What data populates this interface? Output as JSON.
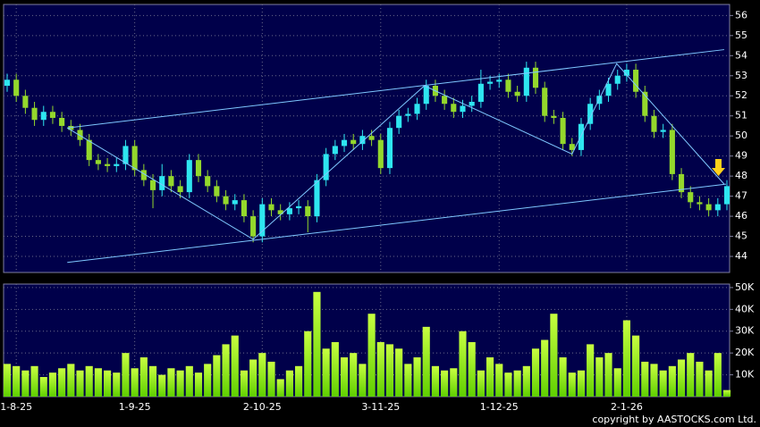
{
  "chart_data": [
    {
      "type": "candlestick",
      "categories": [
        null,
        "1-8-25",
        null,
        null,
        null,
        null,
        null,
        null,
        null,
        null,
        null,
        null,
        null,
        null,
        "1-9-25",
        null,
        null,
        null,
        null,
        null,
        null,
        null,
        null,
        null,
        null,
        null,
        null,
        null,
        "2-10-25",
        null,
        null,
        null,
        null,
        null,
        null,
        null,
        null,
        null,
        null,
        null,
        null,
        "3-11-25",
        null,
        null,
        null,
        null,
        null,
        null,
        null,
        null,
        null,
        null,
        null,
        null,
        "1-12-25",
        null,
        null,
        null,
        null,
        null,
        null,
        null,
        null,
        null,
        null,
        null,
        null,
        null,
        "2-1-26",
        null,
        null,
        null,
        null,
        null,
        null,
        null,
        null,
        null,
        null,
        null
      ],
      "open": [
        52.5,
        52.8,
        52.0,
        51.4,
        50.8,
        51.2,
        50.9,
        50.5,
        50.3,
        49.8,
        48.8,
        48.6,
        48.5,
        48.6,
        49.5,
        48.3,
        47.8,
        47.3,
        48.0,
        47.5,
        47.2,
        48.8,
        48.0,
        47.5,
        47.0,
        46.6,
        46.8,
        46.0,
        45.0,
        46.6,
        46.3,
        46.1,
        46.4,
        46.5,
        46.0,
        47.8,
        49.1,
        49.5,
        49.8,
        49.6,
        50.0,
        49.8,
        48.4,
        50.4,
        51.0,
        51.1,
        51.6,
        52.5,
        52.0,
        51.6,
        51.2,
        51.5,
        51.7,
        52.6,
        52.7,
        52.8,
        52.2,
        52.0,
        53.4,
        52.4,
        51.0,
        50.9,
        49.6,
        49.3,
        50.6,
        51.6,
        52.0,
        52.6,
        53.0,
        53.3,
        52.2,
        51.0,
        50.2,
        50.3,
        48.1,
        47.2,
        46.7,
        46.6,
        46.3,
        46.6
      ],
      "high": [
        53.1,
        53.1,
        52.3,
        51.7,
        51.5,
        51.5,
        51.2,
        50.8,
        50.6,
        50.1,
        49.1,
        48.9,
        48.9,
        49.8,
        49.8,
        48.6,
        48.1,
        48.6,
        48.3,
        47.8,
        49.1,
        49.1,
        48.3,
        47.8,
        47.3,
        47.1,
        47.1,
        46.3,
        46.9,
        46.9,
        46.6,
        46.7,
        46.8,
        46.8,
        48.1,
        49.4,
        49.8,
        50.1,
        50.1,
        50.3,
        50.3,
        50.1,
        50.7,
        51.3,
        51.4,
        51.9,
        52.8,
        52.8,
        52.3,
        51.9,
        51.8,
        52.0,
        53.3,
        53.0,
        53.1,
        53.1,
        52.5,
        53.7,
        53.7,
        52.7,
        51.3,
        51.2,
        49.9,
        50.9,
        51.9,
        52.3,
        52.9,
        53.3,
        53.6,
        53.6,
        52.5,
        51.3,
        50.6,
        50.6,
        48.4,
        47.5,
        47.0,
        46.9,
        46.9,
        47.8
      ],
      "low": [
        52.2,
        51.7,
        51.1,
        50.5,
        50.5,
        50.6,
        50.2,
        50.0,
        49.5,
        48.5,
        48.3,
        48.2,
        48.2,
        48.3,
        48.0,
        47.5,
        46.4,
        47.0,
        47.2,
        46.9,
        46.9,
        47.7,
        47.2,
        46.7,
        46.3,
        46.3,
        45.7,
        44.7,
        44.7,
        46.0,
        45.8,
        45.8,
        46.1,
        45.2,
        45.7,
        47.5,
        48.8,
        49.2,
        49.3,
        49.3,
        49.5,
        48.1,
        48.1,
        50.1,
        50.7,
        50.8,
        51.3,
        51.7,
        51.3,
        50.9,
        50.9,
        51.2,
        51.4,
        52.3,
        52.4,
        51.9,
        51.7,
        51.7,
        52.1,
        50.7,
        50.6,
        49.3,
        49.0,
        49.0,
        50.3,
        51.3,
        51.7,
        52.3,
        52.7,
        51.9,
        50.7,
        49.9,
        49.9,
        47.8,
        46.9,
        46.4,
        46.3,
        46.0,
        46.0,
        46.3
      ],
      "close": [
        52.8,
        52.0,
        51.4,
        50.8,
        51.2,
        50.9,
        50.5,
        50.3,
        49.8,
        48.8,
        48.6,
        48.5,
        48.6,
        49.5,
        48.3,
        47.8,
        47.3,
        48.0,
        47.5,
        47.2,
        48.8,
        48.0,
        47.5,
        47.0,
        46.6,
        46.8,
        46.0,
        45.0,
        46.6,
        46.3,
        46.1,
        46.4,
        46.5,
        46.0,
        47.8,
        49.1,
        49.5,
        49.8,
        49.6,
        50.0,
        49.8,
        48.4,
        50.4,
        51.0,
        51.1,
        51.6,
        52.5,
        52.0,
        51.6,
        51.2,
        51.5,
        51.7,
        52.6,
        52.7,
        52.8,
        52.2,
        52.0,
        53.4,
        52.4,
        51.0,
        50.9,
        49.6,
        49.3,
        50.6,
        51.6,
        52.0,
        52.6,
        53.0,
        53.3,
        52.2,
        51.0,
        50.2,
        50.3,
        48.1,
        47.2,
        46.7,
        46.6,
        46.3,
        46.6,
        47.5
      ],
      "up_color": "#2ee6f0",
      "down_color": "#94d82c",
      "trendline_color": "#7fc8ff",
      "trendlines": [
        {
          "x": [
            6.6,
            78.7
          ],
          "y": [
            50.4,
            54.3
          ]
        },
        {
          "x": [
            6.6,
            78.9
          ],
          "y": [
            43.7,
            47.6
          ]
        },
        {
          "x": [
            6.6,
            27,
            45.8,
            62,
            66.9,
            78.7
          ],
          "y": [
            50.4,
            44.85,
            52.5,
            49.1,
            53.6,
            47.6
          ]
        }
      ],
      "ylim": [
        43.2,
        56.55
      ],
      "yticks": [
        44,
        45,
        46,
        47,
        48,
        49,
        50,
        51,
        52,
        53,
        54,
        55,
        56
      ],
      "grid": true
    },
    {
      "type": "bar",
      "values": [
        15000,
        14000,
        12000,
        14000,
        9000,
        11000,
        13000,
        15000,
        12000,
        14000,
        13000,
        12000,
        11000,
        20000,
        13000,
        18000,
        14000,
        10000,
        13000,
        12000,
        14000,
        11000,
        15000,
        19000,
        24000,
        28000,
        12000,
        17000,
        20000,
        16000,
        8000,
        12000,
        14000,
        30000,
        48000,
        22000,
        25000,
        18000,
        20000,
        15000,
        38000,
        25000,
        24000,
        22000,
        15000,
        18000,
        32000,
        14000,
        12000,
        13000,
        30000,
        25000,
        12000,
        18000,
        15000,
        11000,
        12000,
        14000,
        22000,
        26000,
        38000,
        18000,
        11000,
        12000,
        24000,
        18000,
        20000,
        13000,
        35000,
        28000,
        16000,
        15000,
        12000,
        14000,
        17000,
        20000,
        16000,
        12000,
        20000,
        3000
      ],
      "color": "#7fff00",
      "ylim": [
        0,
        51600
      ],
      "yticks": [
        {
          "value": 10000,
          "label": "10K"
        },
        {
          "value": 20000,
          "label": "20K"
        },
        {
          "value": 30000,
          "label": "30K"
        },
        {
          "value": 40000,
          "label": "40K"
        },
        {
          "value": 50000,
          "label": "50K"
        }
      ],
      "grid": true
    }
  ],
  "copyright": "copyright by AASTOCKS.com Ltd."
}
